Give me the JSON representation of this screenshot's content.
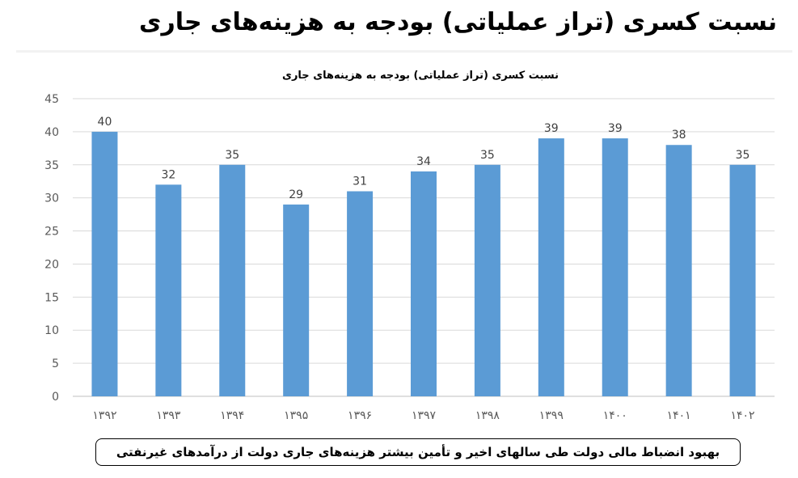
{
  "header": {
    "title": "نسبت کسری (تراز عملیاتی) بودجه به هزینه‌های جاری"
  },
  "chart_data": {
    "type": "bar",
    "title": "نسبت کسری (تراز عملیاتی) بودجه به هزینه‌های جاری",
    "categories": [
      "۱۳۹۲",
      "۱۳۹۳",
      "۱۳۹۴",
      "۱۳۹۵",
      "۱۳۹۶",
      "۱۳۹۷",
      "۱۳۹۸",
      "۱۳۹۹",
      "۱۴۰۰",
      "۱۴۰۱",
      "۱۴۰۲"
    ],
    "values": [
      40,
      32,
      35,
      29,
      31,
      34,
      35,
      39,
      39,
      38,
      35
    ],
    "data_labels": [
      "40",
      "32",
      "35",
      "29",
      "31",
      "34",
      "35",
      "39",
      "39",
      "38",
      "35"
    ],
    "ylim": [
      0,
      45
    ],
    "yticks": [
      "0",
      "5",
      "10",
      "15",
      "20",
      "25",
      "30",
      "35",
      "40",
      "45"
    ],
    "grid": true,
    "bar_color": "#5b9bd5"
  },
  "footer": {
    "note": "بهبود انضباط مالی دولت طی سالهای اخیر و تأمین بیشتر هزینه‌های جاری دولت از درآمدهای غیرنفتی"
  }
}
